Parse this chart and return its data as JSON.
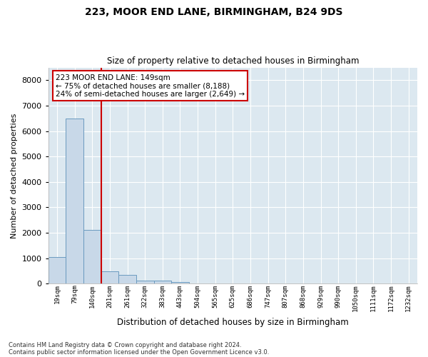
{
  "title1": "223, MOOR END LANE, BIRMINGHAM, B24 9DS",
  "title2": "Size of property relative to detached houses in Birmingham",
  "xlabel": "Distribution of detached houses by size in Birmingham",
  "ylabel": "Number of detached properties",
  "bar_color": "#c8d8e8",
  "bar_edge_color": "#6a9abf",
  "bg_color": "#dce8f0",
  "vline_color": "#cc0000",
  "vline_x_idx": 2.5,
  "annotation_text": "223 MOOR END LANE: 149sqm\n← 75% of detached houses are smaller (8,188)\n24% of semi-detached houses are larger (2,649) →",
  "annotation_box_color": "#cc0000",
  "categories": [
    "19sqm",
    "79sqm",
    "140sqm",
    "201sqm",
    "261sqm",
    "322sqm",
    "383sqm",
    "443sqm",
    "504sqm",
    "565sqm",
    "625sqm",
    "686sqm",
    "747sqm",
    "807sqm",
    "868sqm",
    "929sqm",
    "990sqm",
    "1050sqm",
    "1111sqm",
    "1172sqm",
    "1232sqm"
  ],
  "values": [
    1050,
    6500,
    2100,
    480,
    330,
    130,
    110,
    50,
    0,
    0,
    0,
    0,
    0,
    0,
    0,
    0,
    0,
    0,
    0,
    0,
    0
  ],
  "ylim": [
    0,
    8500
  ],
  "yticks": [
    0,
    1000,
    2000,
    3000,
    4000,
    5000,
    6000,
    7000,
    8000
  ],
  "footnote1": "Contains HM Land Registry data © Crown copyright and database right 2024.",
  "footnote2": "Contains public sector information licensed under the Open Government Licence v3.0."
}
